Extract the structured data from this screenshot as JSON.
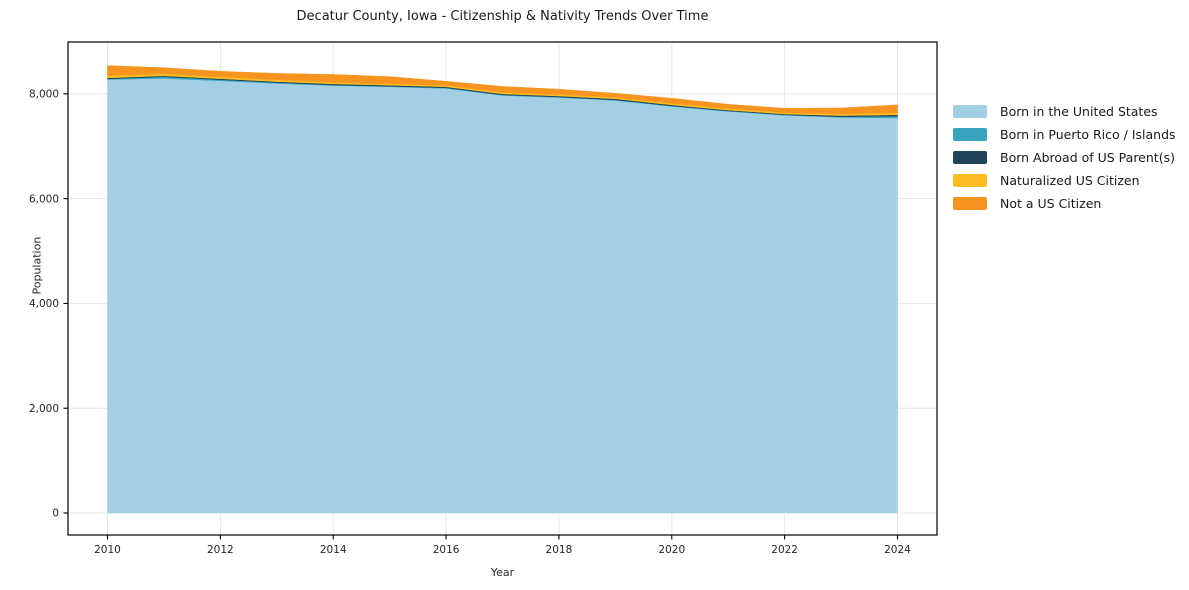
{
  "chart_data": {
    "type": "area",
    "stacked": true,
    "title": "Decatur County, Iowa - Citizenship & Nativity Trends Over Time",
    "xlabel": "Year",
    "ylabel": "Population",
    "x": [
      2010,
      2011,
      2012,
      2013,
      2014,
      2015,
      2016,
      2017,
      2018,
      2019,
      2020,
      2021,
      2022,
      2023,
      2024
    ],
    "series": [
      {
        "name": "Born in the United States",
        "color": "#a2cfe3",
        "values": [
          8275,
          8295,
          8250,
          8200,
          8160,
          8135,
          8105,
          7970,
          7930,
          7875,
          7760,
          7665,
          7590,
          7550,
          7540
        ]
      },
      {
        "name": "Born in Puerto Rico / Islands",
        "color": "#38a3bd",
        "values": [
          10,
          30,
          20,
          15,
          10,
          10,
          10,
          10,
          10,
          10,
          10,
          10,
          10,
          15,
          35
        ]
      },
      {
        "name": "Born Abroad of US Parent(s)",
        "color": "#21465a",
        "values": [
          20,
          20,
          20,
          20,
          20,
          20,
          20,
          20,
          20,
          20,
          20,
          15,
          15,
          20,
          25
        ]
      },
      {
        "name": "Naturalized US Citizen",
        "color": "#fdbb24",
        "values": [
          45,
          40,
          35,
          35,
          35,
          30,
          30,
          30,
          30,
          30,
          30,
          30,
          30,
          35,
          40
        ]
      },
      {
        "name": "Not a US Citizen",
        "color": "#f7941f",
        "values": [
          190,
          115,
          105,
          120,
          145,
          135,
          75,
          110,
          100,
          75,
          95,
          80,
          80,
          110,
          150
        ]
      }
    ],
    "xticks": [
      2010,
      2012,
      2014,
      2016,
      2018,
      2020,
      2022,
      2024
    ],
    "yticks": [
      0,
      2000,
      4000,
      6000,
      8000
    ],
    "ytick_labels": [
      "0",
      "2,000",
      "4,000",
      "6,000",
      "8,000"
    ],
    "xlim": [
      2009.3,
      2024.7
    ],
    "ylim": [
      -420,
      8990
    ],
    "grid": true,
    "legend_position": "right",
    "colors": {
      "grid": "#e7e7e7",
      "frame": "#000000",
      "tick_text": "#262626",
      "background": "#ffffff"
    }
  }
}
